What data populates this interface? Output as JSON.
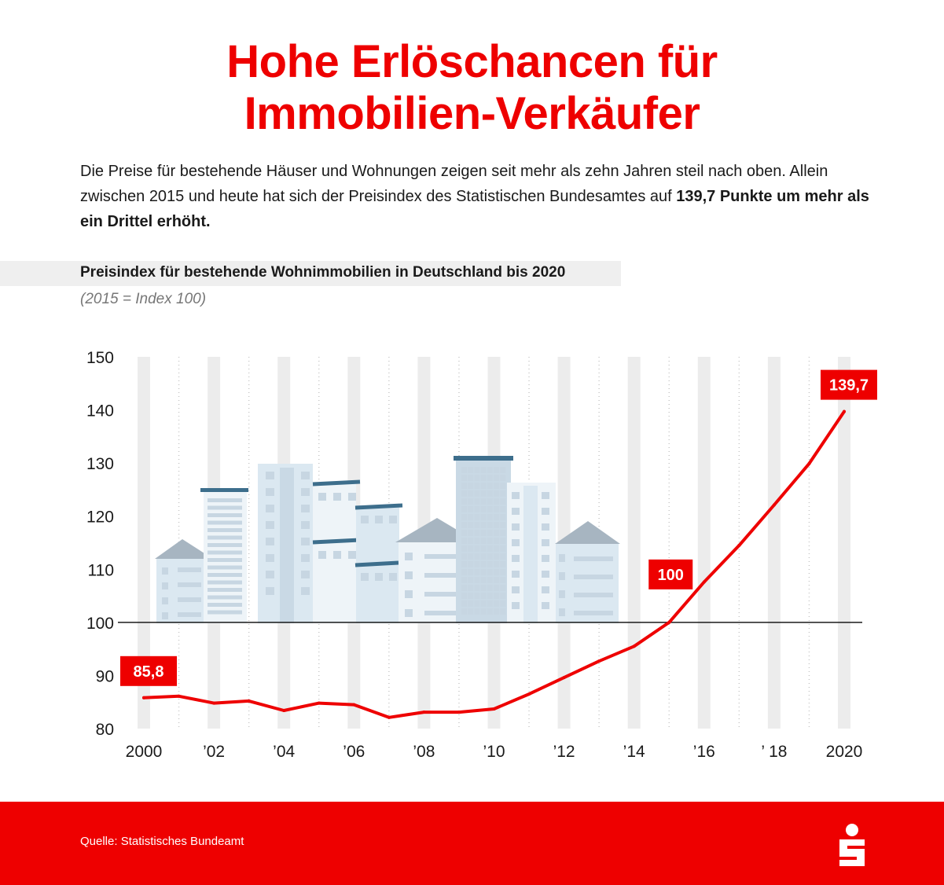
{
  "header": {
    "title_line1": "Hohe Erlöschancen für",
    "title_line2": "Immobilien-Verkäufer"
  },
  "intro": {
    "text_before": "Die Preise für bestehende Häuser und Wohnungen zeigen seit mehr als zehn Jahren steil nach oben. Allein zwischen 2015 und heute hat sich der Preisindex des Statistischen Bundesamtes auf ",
    "text_bold": "139,7 Punkte um mehr als ein Drittel erhöht."
  },
  "chart_subtitle": "Preisindex für bestehende Wohnimmobilien in Deutschland bis 2020",
  "chart_index_note": "(2015 = Index 100)",
  "footer": {
    "source": "Quelle: Statistisches Bundeamt",
    "logo_icon": "sparkasse-logo-icon"
  },
  "colors": {
    "accent": "#ee0000",
    "grid_band": "#ececec",
    "buildings": "#dbe8f1",
    "roof": "#a7b5c1"
  },
  "chart_data": {
    "type": "line",
    "title": "Preisindex für bestehende Wohnimmobilien in Deutschland bis 2020",
    "subtitle": "(2015 = Index 100)",
    "xlabel": "",
    "ylabel": "",
    "x": [
      2000,
      2001,
      2002,
      2003,
      2004,
      2005,
      2006,
      2007,
      2008,
      2009,
      2010,
      2011,
      2012,
      2013,
      2014,
      2015,
      2016,
      2017,
      2018,
      2019,
      2020
    ],
    "series": [
      {
        "name": "Preisindex",
        "values": [
          85.8,
          86.1,
          84.8,
          85.2,
          83.4,
          84.8,
          84.5,
          82.1,
          83.1,
          83.1,
          83.7,
          86.5,
          89.6,
          92.7,
          95.5,
          100,
          107.6,
          114.5,
          122.1,
          129.9,
          139.7
        ]
      }
    ],
    "ylim": [
      80,
      150
    ],
    "yticks": [
      80,
      90,
      100,
      110,
      120,
      130,
      140,
      150
    ],
    "ytick_labels": [
      "80",
      "90",
      "100",
      "110",
      "120",
      "130",
      "140",
      "150"
    ],
    "xtick_labels": [
      {
        "x": 2000,
        "label": "2000"
      },
      {
        "x": 2002,
        "label": "’02"
      },
      {
        "x": 2004,
        "label": "’04"
      },
      {
        "x": 2006,
        "label": "’06"
      },
      {
        "x": 2008,
        "label": "’08"
      },
      {
        "x": 2010,
        "label": "’10"
      },
      {
        "x": 2012,
        "label": "’12"
      },
      {
        "x": 2014,
        "label": "’14"
      },
      {
        "x": 2016,
        "label": "’16"
      },
      {
        "x": 2018,
        "label": "’ 18"
      },
      {
        "x": 2020,
        "label": "2020"
      }
    ],
    "annotations": [
      {
        "x": 2000,
        "y": 85.8,
        "label": "85,8"
      },
      {
        "x": 2015,
        "y": 100,
        "label": "100"
      },
      {
        "x": 2020,
        "y": 139.7,
        "label": "139,7"
      }
    ],
    "grid": "vertical bands",
    "reference_line": 100,
    "legend": "none"
  }
}
